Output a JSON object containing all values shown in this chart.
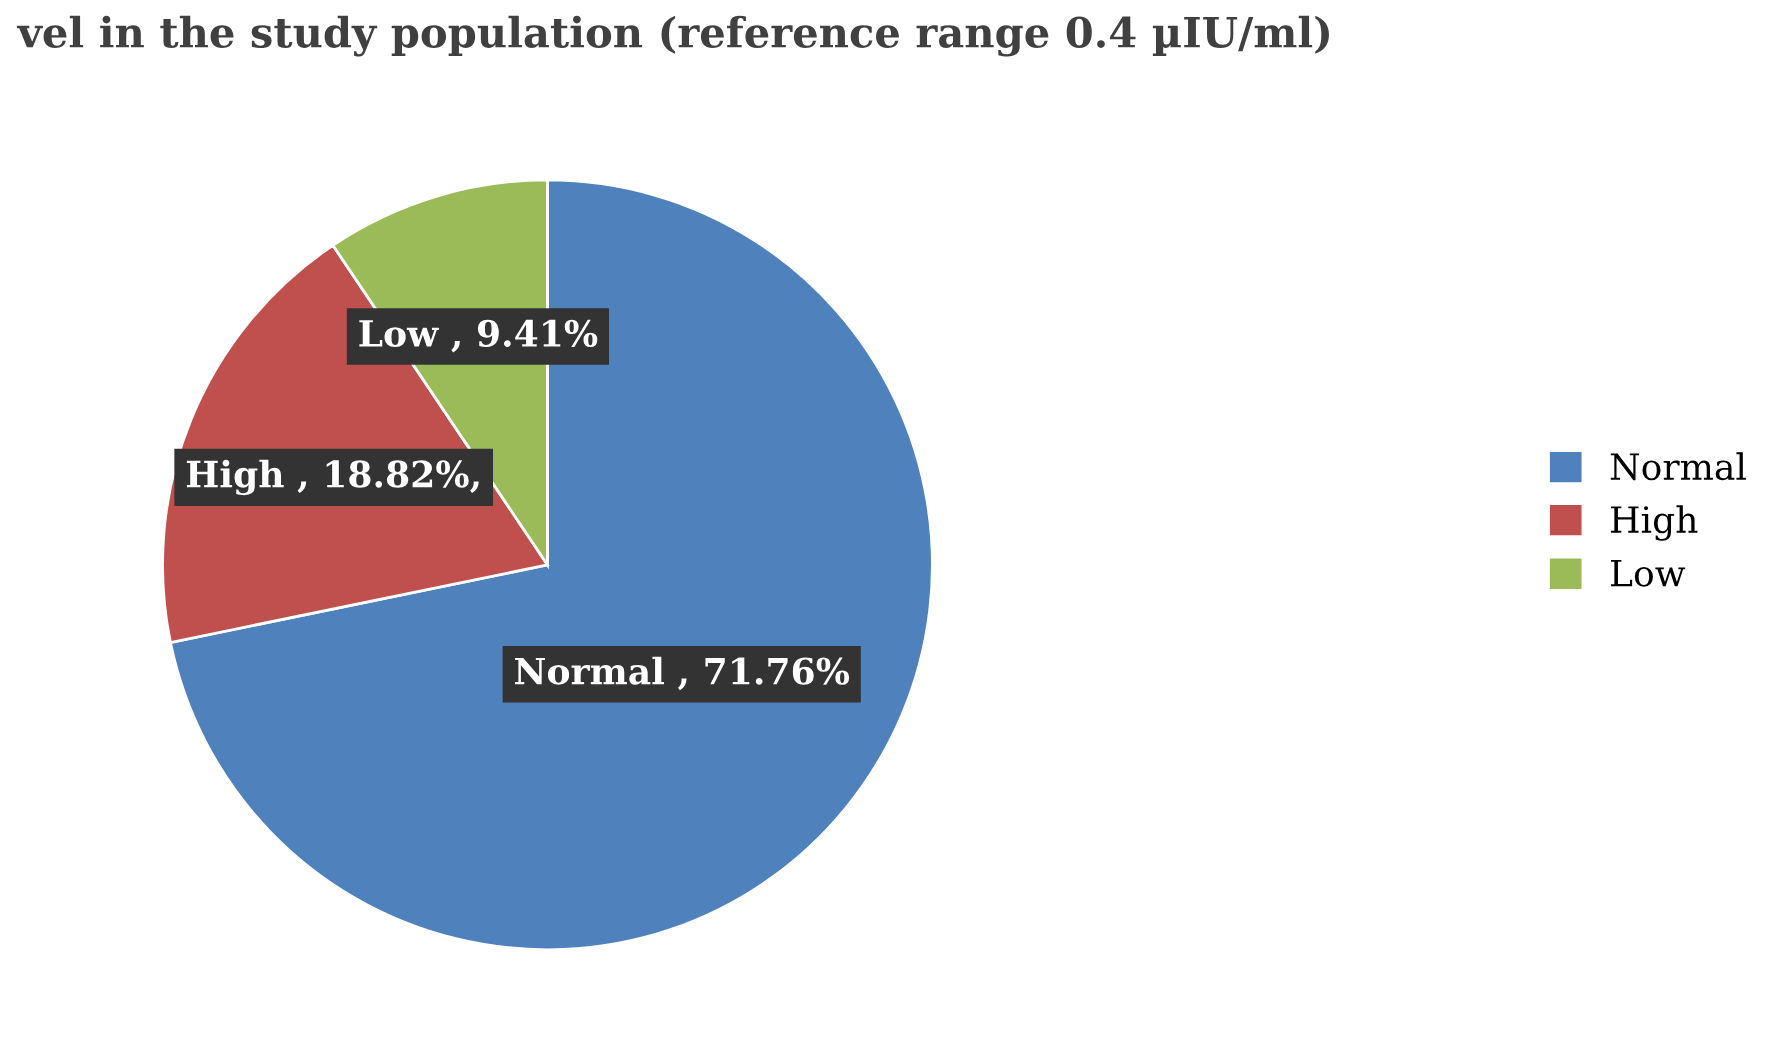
{
  "chart_data": {
    "type": "pie",
    "title": "vel in the study population (reference range 0.4 µIU/ml)",
    "categories": [
      "Normal",
      "High",
      "Low"
    ],
    "values": [
      71.76,
      18.82,
      9.41
    ],
    "colors": [
      "#4f81bd",
      "#c0504d",
      "#9bbb59"
    ],
    "value_labels": [
      "Normal , 71.76%",
      "High , 18.82%,",
      "Low , 9.41%"
    ],
    "legend": "right"
  }
}
